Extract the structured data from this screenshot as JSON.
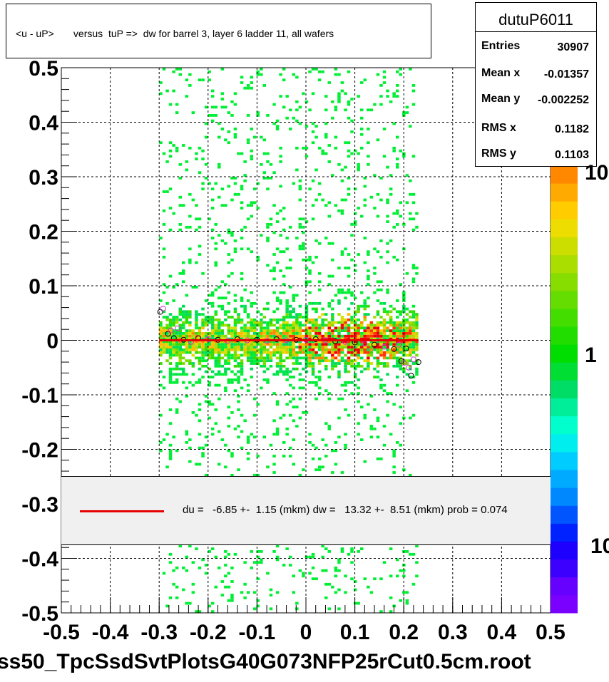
{
  "title": "<u - uP>       versus  tuP =>  dw for barrel 3, layer 6 ladder 11, all wafers",
  "file_name": "ss50_TpcSsdSvtPlotsG40G073NFP25rCut0.5cm.root",
  "stats": {
    "name": "dutuP6011",
    "rows": [
      {
        "label": "Entries",
        "value": "30907"
      },
      {
        "label": "Mean x",
        "value": "-0.01357"
      },
      {
        "label": "Mean y",
        "value": "-0.002252"
      },
      {
        "label": "RMS x",
        "value": "0.1182"
      },
      {
        "label": "RMS y",
        "value": "0.1103"
      }
    ]
  },
  "fit_text": "du =   -6.85 +-  1.15 (mkm) dw =   13.32 +-  8.51 (mkm) prob = 0.074",
  "palette_labels": [
    "10",
    "1",
    "10"
  ],
  "colors": {
    "fit_line": "#e60000",
    "box_fill": "#f0f0f0"
  },
  "chart_data": {
    "type": "heatmap",
    "xlim": [
      -0.5,
      0.5
    ],
    "ylim": [
      -0.5,
      0.5
    ],
    "x_ticks": [
      "-0.5",
      "-0.4",
      "-0.3",
      "-0.2",
      "-0.1",
      "0",
      "0.1",
      "0.2",
      "0.3",
      "0.4",
      "0.5"
    ],
    "y_ticks": [
      "0.5",
      "0.4",
      "0.3",
      "0.2",
      "0.1",
      "0",
      "-0.1",
      "-0.2",
      "-0.3",
      "-0.4",
      "-0.5"
    ],
    "grid": true,
    "populated_x_range": [
      -0.3,
      0.23
    ],
    "fit_line": {
      "x": [
        -0.3,
        0.23
      ],
      "y": [
        0.0,
        0.0
      ]
    },
    "profile_points": [
      {
        "x": -0.298,
        "y": 0.052
      },
      {
        "x": -0.292,
        "y": 0.058
      },
      {
        "x": -0.282,
        "y": 0.012
      },
      {
        "x": -0.276,
        "y": 0.018
      },
      {
        "x": -0.27,
        "y": 0.004
      },
      {
        "x": -0.262,
        "y": 0.022
      },
      {
        "x": -0.25,
        "y": 0.001
      },
      {
        "x": -0.235,
        "y": -0.003
      },
      {
        "x": -0.22,
        "y": 0.004
      },
      {
        "x": -0.2,
        "y": 0.002
      },
      {
        "x": -0.18,
        "y": 0.001
      },
      {
        "x": -0.16,
        "y": -0.001
      },
      {
        "x": -0.14,
        "y": 0.002
      },
      {
        "x": -0.12,
        "y": 0.0
      },
      {
        "x": -0.1,
        "y": 0.001
      },
      {
        "x": -0.08,
        "y": -0.001
      },
      {
        "x": -0.06,
        "y": 0.002
      },
      {
        "x": -0.04,
        "y": 0.0
      },
      {
        "x": -0.02,
        "y": 0.001
      },
      {
        "x": 0.0,
        "y": 0.001
      },
      {
        "x": 0.02,
        "y": 0.002
      },
      {
        "x": 0.04,
        "y": 0.0
      },
      {
        "x": 0.06,
        "y": -0.002
      },
      {
        "x": 0.08,
        "y": -0.003
      },
      {
        "x": 0.1,
        "y": -0.004
      },
      {
        "x": 0.12,
        "y": -0.006
      },
      {
        "x": 0.14,
        "y": -0.008
      },
      {
        "x": 0.16,
        "y": -0.012
      },
      {
        "x": 0.18,
        "y": -0.016
      },
      {
        "x": 0.19,
        "y": -0.008
      },
      {
        "x": 0.195,
        "y": -0.038
      },
      {
        "x": 0.2,
        "y": -0.042
      },
      {
        "x": 0.205,
        "y": -0.015
      },
      {
        "x": 0.21,
        "y": -0.05
      },
      {
        "x": 0.215,
        "y": -0.065
      },
      {
        "x": 0.22,
        "y": -0.035
      },
      {
        "x": 0.23,
        "y": -0.04
      }
    ],
    "color_scale": "log"
  }
}
